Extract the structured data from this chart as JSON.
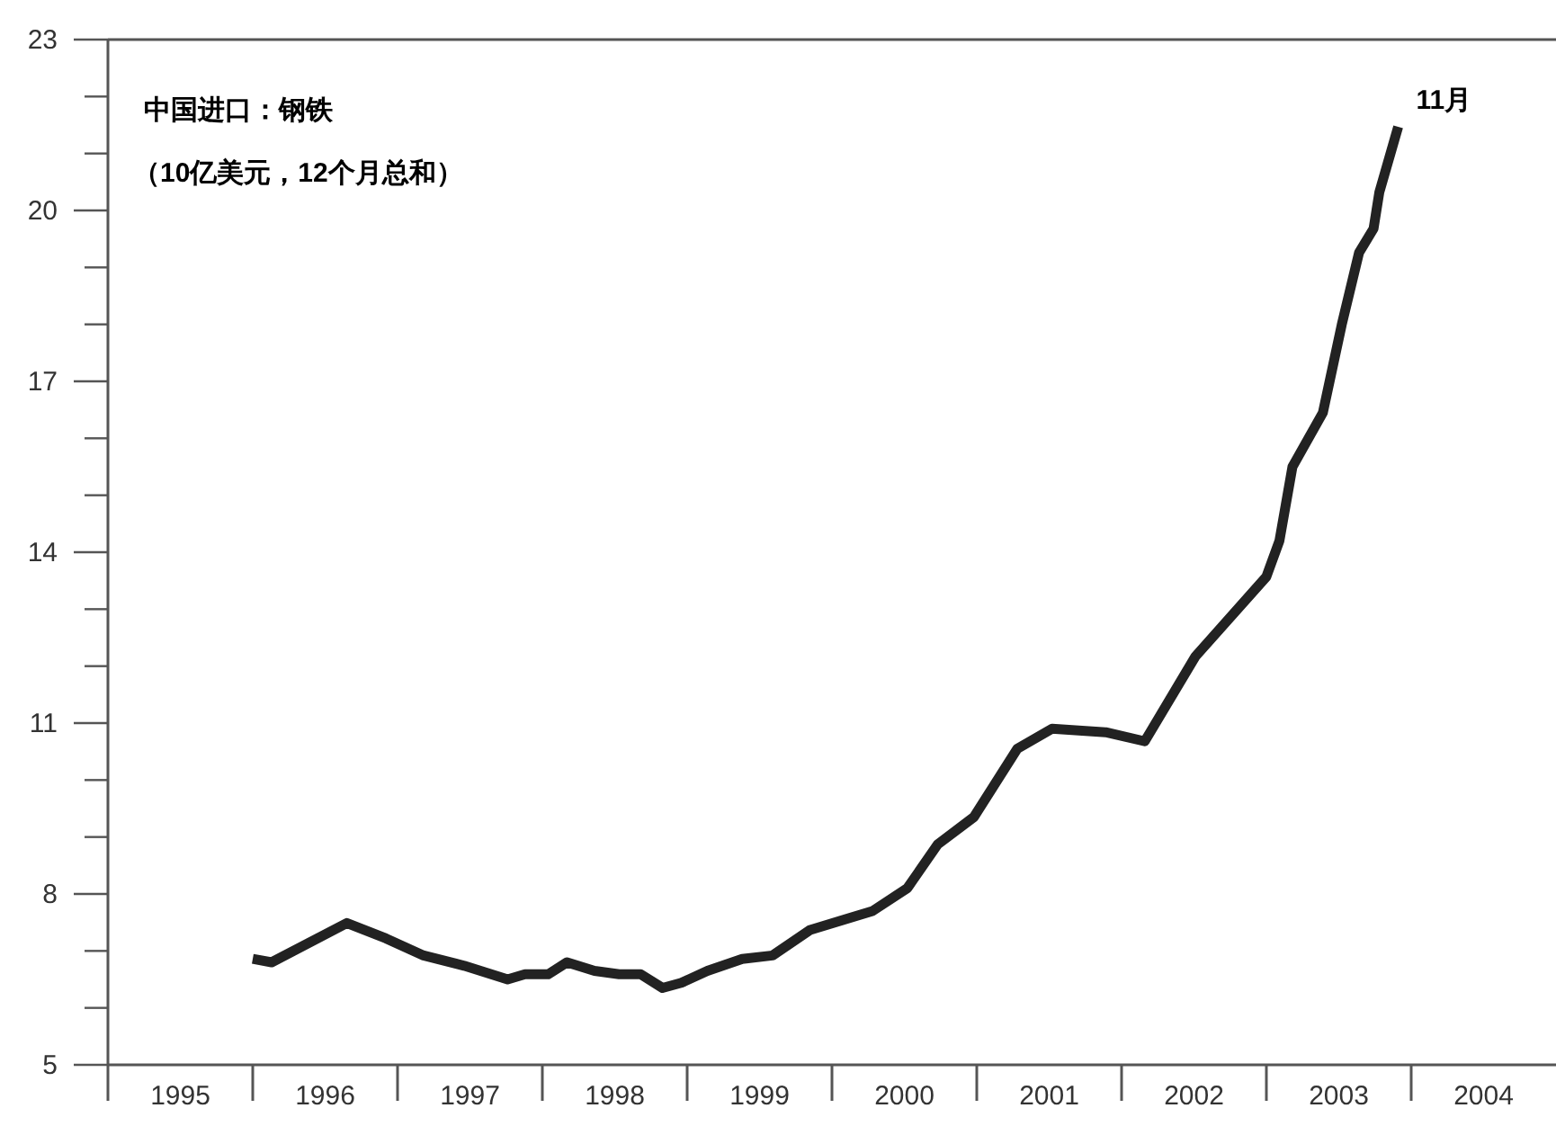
{
  "chart_data": {
    "type": "line",
    "title": "中国进口：钢铁",
    "subtitle": "（10亿美元，12个月总和）",
    "annotations": [
      {
        "text": "11月",
        "x": 2003.91,
        "y": 21.47
      }
    ],
    "x": [
      1996.0,
      1996.13,
      1996.65,
      1996.92,
      1997.18,
      1997.46,
      1997.76,
      1997.88,
      1998.04,
      1998.17,
      1998.36,
      1998.53,
      1998.68,
      1998.83,
      1998.96,
      1999.14,
      1999.38,
      1999.59,
      1999.85,
      2000.28,
      2000.52,
      2000.73,
      2000.98,
      2001.28,
      2001.52,
      2001.89,
      2002.16,
      2002.51,
      2003.0,
      2003.09,
      2003.18,
      2003.39,
      2003.52,
      2003.64,
      2003.74,
      2003.78,
      2003.91
    ],
    "series": [
      {
        "color": "#222222",
        "values": [
          6.86,
          6.8,
          7.49,
          7.22,
          6.92,
          6.74,
          6.5,
          6.59,
          6.59,
          6.8,
          6.65,
          6.59,
          6.59,
          6.35,
          6.44,
          6.65,
          6.86,
          6.92,
          7.37,
          7.7,
          8.1,
          8.87,
          9.35,
          10.55,
          10.9,
          10.84,
          10.68,
          12.17,
          13.57,
          14.2,
          15.5,
          16.45,
          17.99,
          19.26,
          19.68,
          20.32,
          21.47
        ]
      }
    ],
    "xlim": [
      1995,
      2005
    ],
    "ylim": [
      5,
      23
    ],
    "xticks": [
      {
        "value": 1995.5,
        "label": "1995"
      },
      {
        "value": 1996.5,
        "label": "1996"
      },
      {
        "value": 1997.5,
        "label": "1997"
      },
      {
        "value": 1998.5,
        "label": "1998"
      },
      {
        "value": 1999.5,
        "label": "1999"
      },
      {
        "value": 2000.5,
        "label": "2000"
      },
      {
        "value": 2001.5,
        "label": "2001"
      },
      {
        "value": 2002.5,
        "label": "2002"
      },
      {
        "value": 2003.5,
        "label": "2003"
      },
      {
        "value": 2004.5,
        "label": "2004"
      }
    ],
    "yticks": [
      5,
      {
        "value": 6,
        "label": null
      },
      {
        "value": 7,
        "label": null
      },
      8,
      {
        "value": 9,
        "label": null
      },
      {
        "value": 10,
        "label": null
      },
      11,
      {
        "value": 12,
        "label": null
      },
      {
        "value": 13,
        "label": null
      },
      14,
      {
        "value": 15,
        "label": null
      },
      {
        "value": 16,
        "label": null
      },
      17,
      {
        "value": 18,
        "label": null
      },
      {
        "value": 19,
        "label": null
      },
      20,
      {
        "value": 21,
        "label": null
      },
      {
        "value": 22,
        "label": null
      },
      23
    ]
  }
}
